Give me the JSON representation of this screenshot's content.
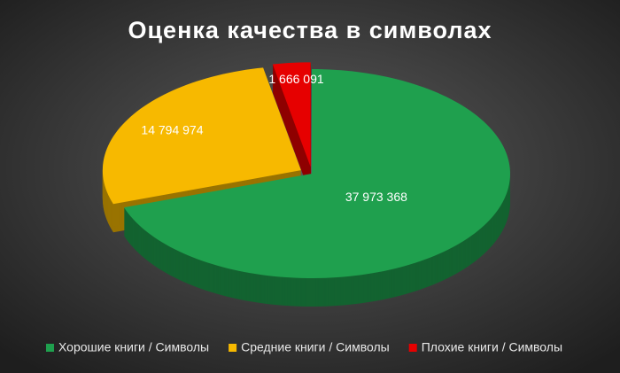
{
  "chart_data": {
    "type": "pie",
    "title": "Оценка качества в символах",
    "categories": [
      "Хорошие книги / Символы",
      "Средние книги / Символы",
      "Плохие книги / Символы"
    ],
    "values": [
      37973368,
      14794974,
      1666091
    ],
    "value_labels": [
      "37 973 368",
      "14 794 974",
      "1 666 091"
    ],
    "colors": [
      "#1fa04e",
      "#f7b900",
      "#e60000"
    ],
    "legend": "bottom"
  }
}
